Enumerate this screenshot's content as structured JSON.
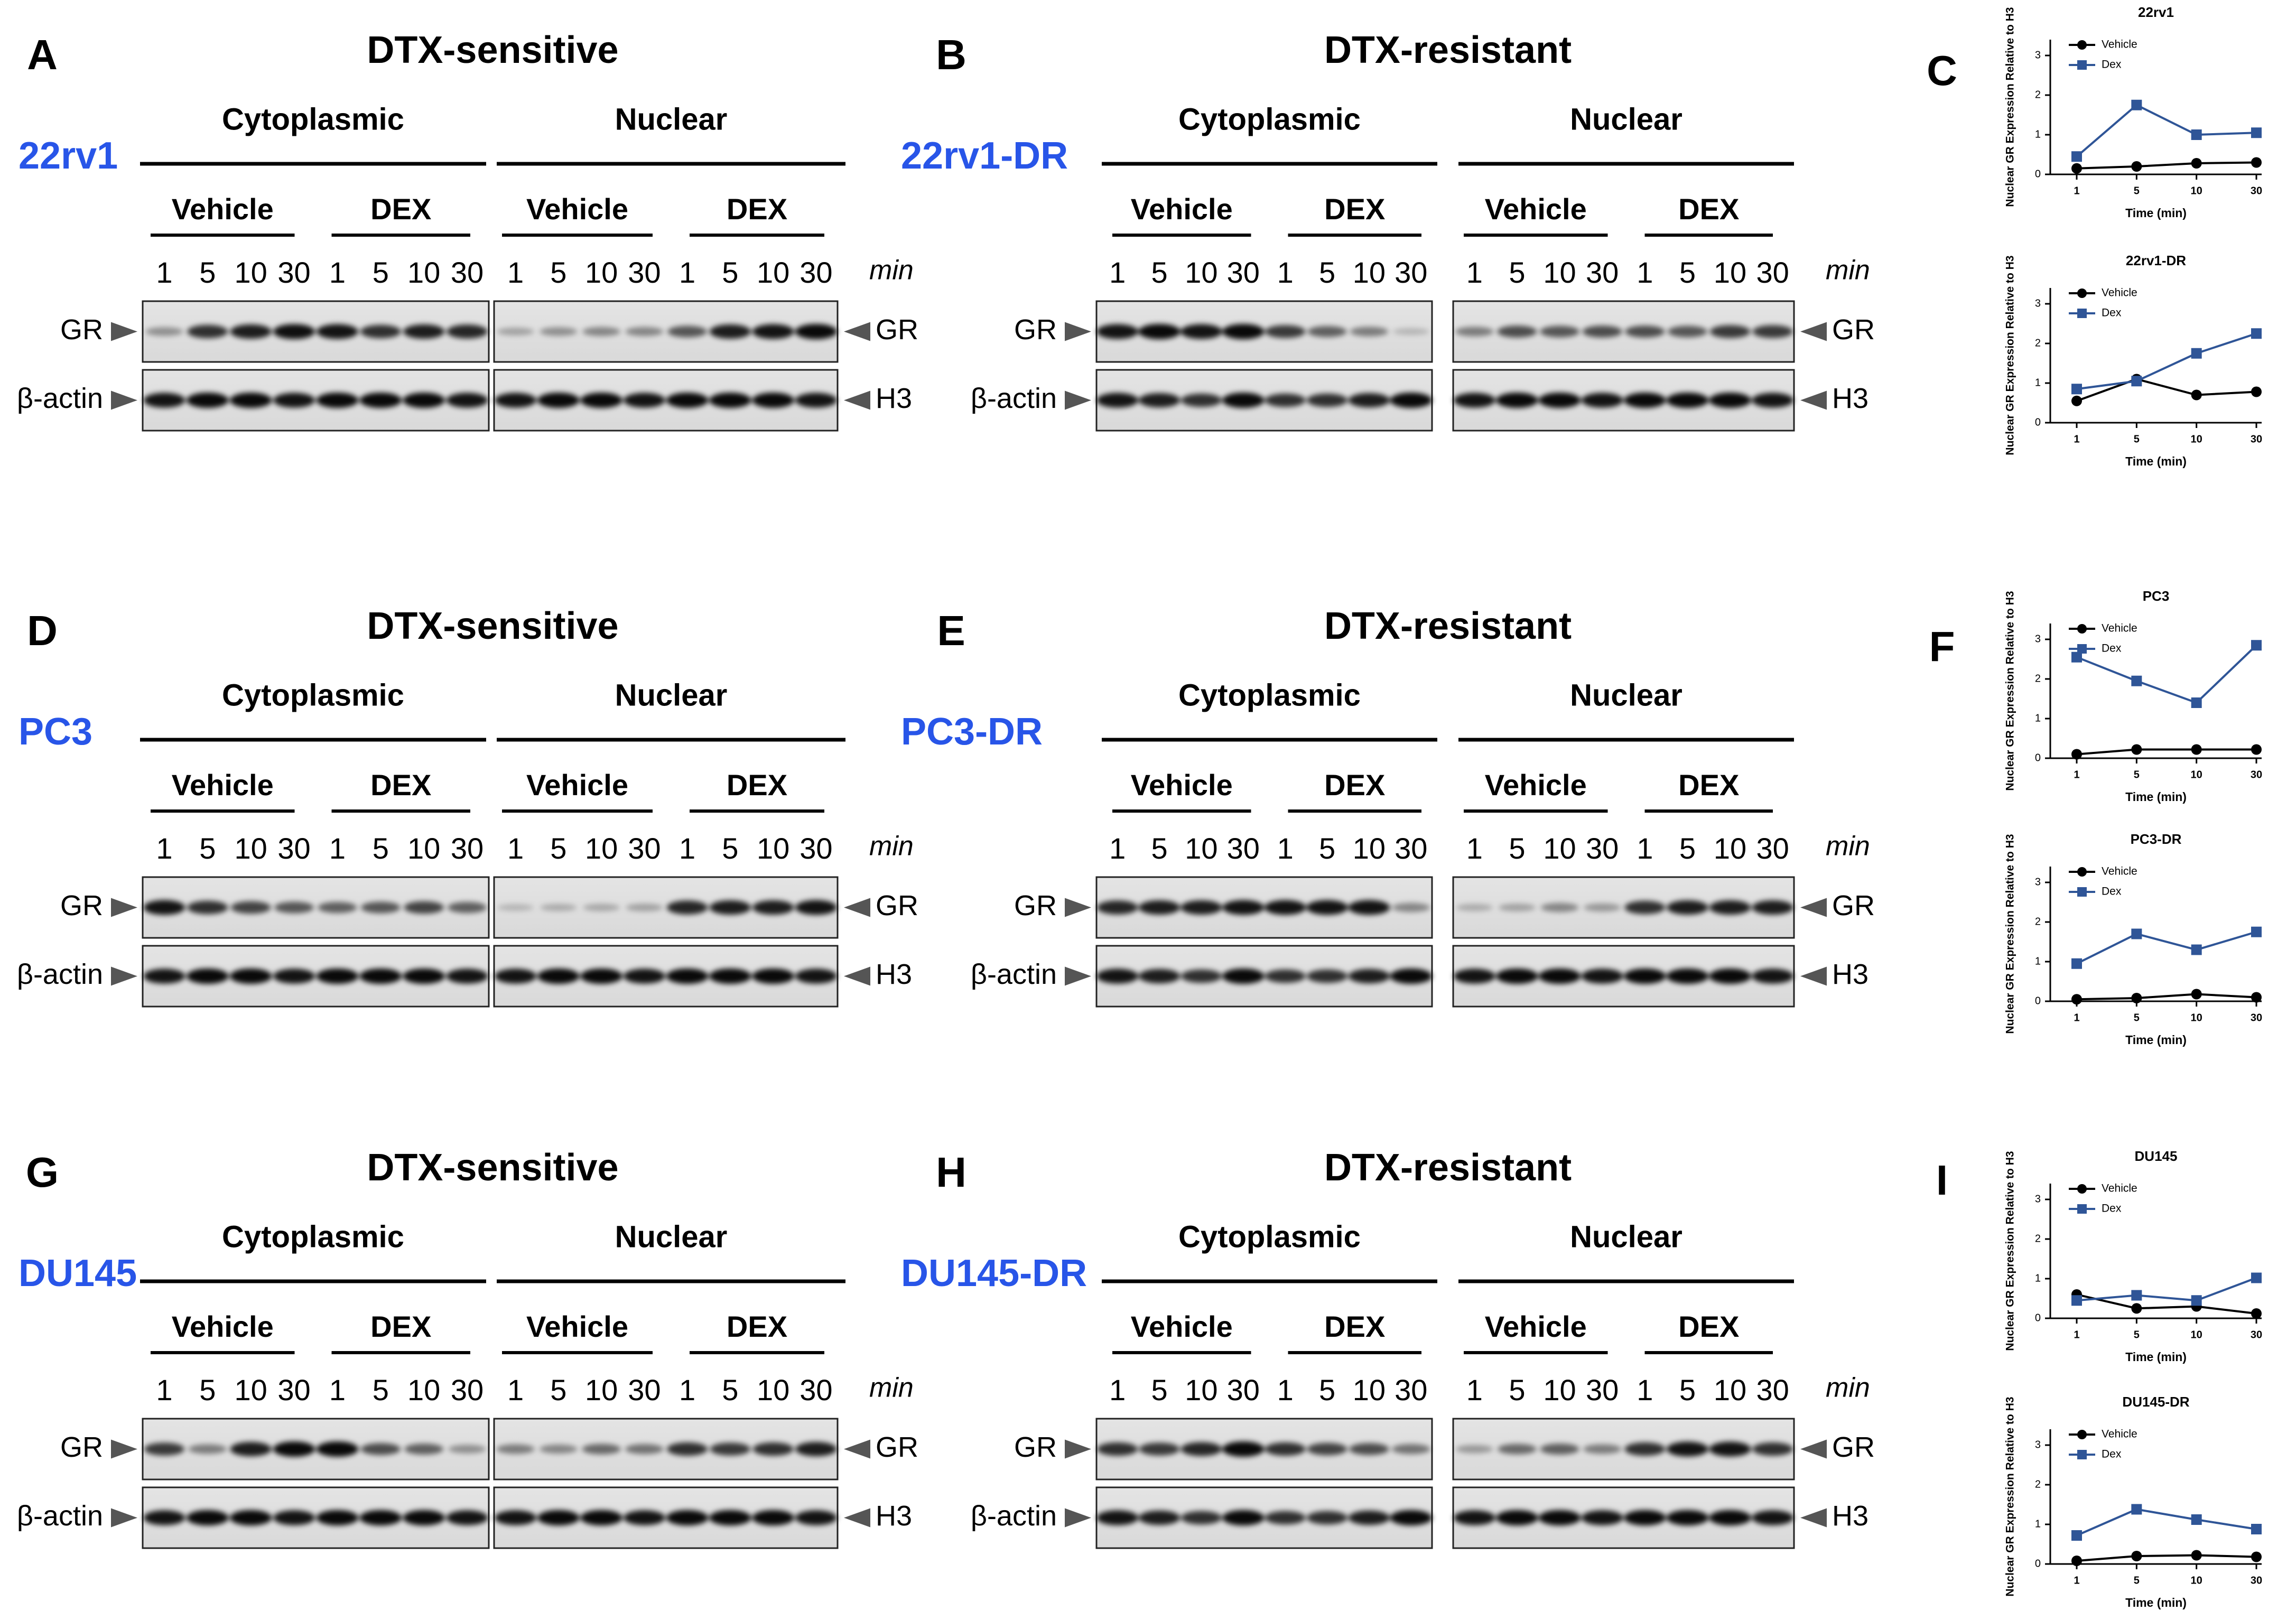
{
  "figure": {
    "rows": [
      {
        "sensitive": {
          "letter": "A",
          "title": "DTX-sensitive",
          "cell": "22rv1"
        },
        "resistant": {
          "letter": "B",
          "title": "DTX-resistant",
          "cell": "22rv1-DR"
        },
        "chart_letter": "C"
      },
      {
        "sensitive": {
          "letter": "D",
          "title": "DTX-sensitive",
          "cell": "PC3"
        },
        "resistant": {
          "letter": "E",
          "title": "DTX-resistant",
          "cell": "PC3-DR"
        },
        "chart_letter": "F"
      },
      {
        "sensitive": {
          "letter": "G",
          "title": "DTX-sensitive",
          "cell": "DU145"
        },
        "resistant": {
          "letter": "H",
          "title": "DTX-resistant",
          "cell": "DU145-DR"
        },
        "chart_letter": "I"
      }
    ],
    "blot_labels": {
      "cytoplasmic": "Cytoplasmic",
      "nuclear": "Nuclear",
      "vehicle": "Vehicle",
      "dex": "DEX",
      "timepoints": [
        "1",
        "5",
        "10",
        "30"
      ],
      "min": "min",
      "gr": "GR",
      "actin": "β-actin",
      "h3": "H3"
    }
  },
  "chart_data": [
    {
      "type": "line",
      "title": "22rv1",
      "xlabel": "Time (min)",
      "ylabel": "Nuclear GR Expression Relative to H3",
      "categories": [
        "1",
        "5",
        "10",
        "30"
      ],
      "yticks": [
        0,
        1,
        2,
        3
      ],
      "ylim": [
        0,
        3.4
      ],
      "legend": "top-left",
      "series": [
        {
          "name": "Vehicle",
          "color": "#000000",
          "marker": "circle",
          "values": [
            0.15,
            0.2,
            0.28,
            0.3
          ]
        },
        {
          "name": "Dex",
          "color": "#2f5597",
          "marker": "square",
          "values": [
            0.45,
            1.75,
            1.0,
            1.05
          ]
        }
      ]
    },
    {
      "type": "line",
      "title": "22rv1-DR",
      "xlabel": "Time (min)",
      "ylabel": "Nuclear GR Expression Relative to H3",
      "categories": [
        "1",
        "5",
        "10",
        "30"
      ],
      "yticks": [
        0,
        1,
        2,
        3
      ],
      "ylim": [
        0,
        3.4
      ],
      "legend": "top-left",
      "series": [
        {
          "name": "Vehicle",
          "color": "#000000",
          "marker": "circle",
          "values": [
            0.55,
            1.1,
            0.7,
            0.78
          ]
        },
        {
          "name": "Dex",
          "color": "#2f5597",
          "marker": "square",
          "values": [
            0.85,
            1.05,
            1.75,
            2.25
          ]
        }
      ]
    },
    {
      "type": "line",
      "title": "PC3",
      "xlabel": "Time (min)",
      "ylabel": "Nuclear GR Expression Relative to H3",
      "categories": [
        "1",
        "5",
        "10",
        "30"
      ],
      "yticks": [
        0,
        1,
        2,
        3
      ],
      "ylim": [
        0,
        3.4
      ],
      "legend": "top-left",
      "series": [
        {
          "name": "Vehicle",
          "color": "#000000",
          "marker": "circle",
          "values": [
            0.1,
            0.22,
            0.22,
            0.22
          ]
        },
        {
          "name": "Dex",
          "color": "#2f5597",
          "marker": "square",
          "values": [
            2.55,
            1.95,
            1.4,
            2.85
          ]
        }
      ]
    },
    {
      "type": "line",
      "title": "PC3-DR",
      "xlabel": "Time (min)",
      "ylabel": "Nuclear GR Expression Relative to H3",
      "categories": [
        "1",
        "5",
        "10",
        "30"
      ],
      "yticks": [
        0,
        1,
        2,
        3
      ],
      "ylim": [
        0,
        3.4
      ],
      "legend": "top-left",
      "series": [
        {
          "name": "Vehicle",
          "color": "#000000",
          "marker": "circle",
          "values": [
            0.05,
            0.08,
            0.18,
            0.1
          ]
        },
        {
          "name": "Dex",
          "color": "#2f5597",
          "marker": "square",
          "values": [
            0.95,
            1.7,
            1.3,
            1.75
          ]
        }
      ]
    },
    {
      "type": "line",
      "title": "DU145",
      "xlabel": "Time (min)",
      "ylabel": "Nuclear GR Expression Relative to H3",
      "categories": [
        "1",
        "5",
        "10",
        "30"
      ],
      "yticks": [
        0,
        1,
        2,
        3
      ],
      "ylim": [
        0,
        3.4
      ],
      "legend": "top-left",
      "series": [
        {
          "name": "Vehicle",
          "color": "#000000",
          "marker": "circle",
          "values": [
            0.6,
            0.25,
            0.3,
            0.12
          ]
        },
        {
          "name": "Dex",
          "color": "#2f5597",
          "marker": "square",
          "values": [
            0.45,
            0.58,
            0.45,
            1.02
          ]
        }
      ]
    },
    {
      "type": "line",
      "title": "DU145-DR",
      "xlabel": "Time (min)",
      "ylabel": "Nuclear GR Expression Relative to H3",
      "categories": [
        "1",
        "5",
        "10",
        "30"
      ],
      "yticks": [
        0,
        1,
        2,
        3
      ],
      "ylim": [
        0,
        3.4
      ],
      "legend": "top-left",
      "series": [
        {
          "name": "Vehicle",
          "color": "#000000",
          "marker": "circle",
          "values": [
            0.08,
            0.2,
            0.22,
            0.18
          ]
        },
        {
          "name": "Dex",
          "color": "#2f5597",
          "marker": "square",
          "values": [
            0.72,
            1.38,
            1.12,
            0.88
          ]
        }
      ]
    }
  ]
}
